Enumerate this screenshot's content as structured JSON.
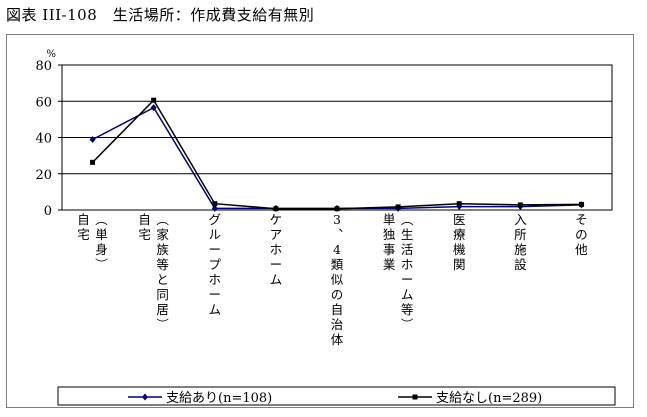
{
  "title": "図表 III-108　生活場所：作成費支給有無別",
  "chart_data": {
    "type": "line",
    "y_unit": "%",
    "ylim": [
      0,
      80
    ],
    "yticks": [
      "0",
      "20",
      "40",
      "60",
      "80"
    ],
    "grid": true,
    "legend_placement": "bottom",
    "categories": [
      "自宅（単身）",
      "自宅（家族等と同居）",
      "グループホーム",
      "ケアホーム",
      "3、4類似の自治体",
      "単独事業（生活ホーム等）",
      "医療機関",
      "入所施設",
      "その他"
    ],
    "series": [
      {
        "name": "支給あり(n=108)",
        "color": "#000080",
        "marker": "diamond",
        "values": [
          38.9,
          56.5,
          0.9,
          0.9,
          0.9,
          0.9,
          1.9,
          1.9,
          2.8
        ]
      },
      {
        "name": "支給なし(n=289)",
        "color": "#000000",
        "marker": "square",
        "values": [
          26.3,
          60.6,
          3.5,
          0.7,
          0.7,
          1.7,
          3.5,
          2.8,
          3.1
        ]
      }
    ]
  }
}
